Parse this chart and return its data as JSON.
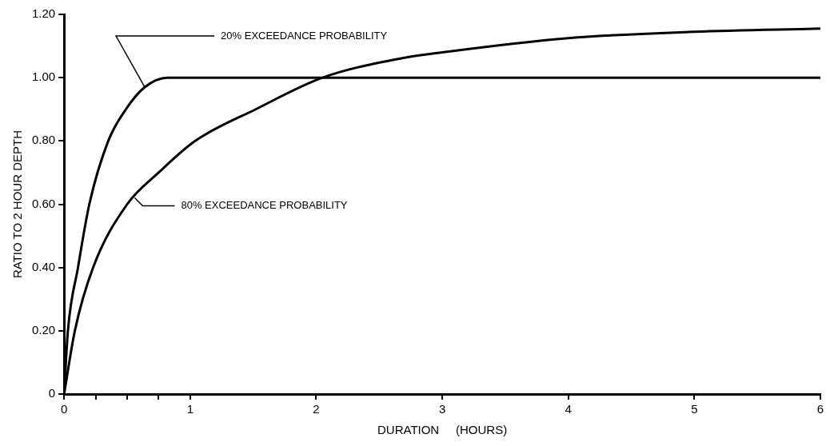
{
  "chart_data": {
    "type": "line",
    "xlabel": "DURATION     (HOURS)",
    "ylabel": "RATIO TO 2 HOUR DEPTH",
    "xlim": [
      0,
      6
    ],
    "ylim": [
      0,
      1.2
    ],
    "xticks": [
      0,
      {
        "value": 0.25,
        "label": null
      },
      {
        "value": 0.5,
        "label": null
      },
      {
        "value": 0.75,
        "label": null
      },
      1,
      2,
      3,
      4,
      5,
      6
    ],
    "yticks": [
      0,
      {
        "value": 0.2,
        "label": "0.20"
      },
      {
        "value": 0.4,
        "label": "0.40"
      },
      {
        "value": 0.6,
        "label": "0.60"
      },
      {
        "value": 0.8,
        "label": "0.80"
      },
      {
        "value": 1,
        "label": "1.00"
      },
      {
        "value": 1.2,
        "label": "1.20"
      }
    ],
    "series": [
      {
        "color": "#000000",
        "x": [
          0,
          0.03,
          0.11,
          0.2,
          0.35,
          0.49,
          0.64,
          0.82,
          1,
          2,
          3,
          4,
          5,
          6
        ],
        "values": [
          0,
          0.2,
          0.4,
          0.6,
          0.8,
          0.9,
          0.97,
          1,
          1,
          1,
          1,
          1,
          1,
          1
        ]
      },
      {
        "color": "#000000",
        "x": [
          0,
          0.085,
          0.23,
          0.5,
          0.75,
          1.04,
          1.52,
          2.05,
          2.66,
          3,
          4,
          5,
          6
        ],
        "values": [
          0,
          0.2,
          0.4,
          0.6,
          0.7,
          0.8,
          0.9,
          1,
          1.06,
          1.08,
          1.125,
          1.145,
          1.155
        ]
      }
    ],
    "annotations": [
      {
        "text": "20% EXCEEDANCE PROBABILITY",
        "x": 0.64,
        "y": 0.97
      },
      {
        "text": "80% EXCEEDANCE PROBABILITY",
        "x": 0.56,
        "y": 0.62
      }
    ],
    "marker": "none",
    "line_style": "solid",
    "legend": false
  }
}
